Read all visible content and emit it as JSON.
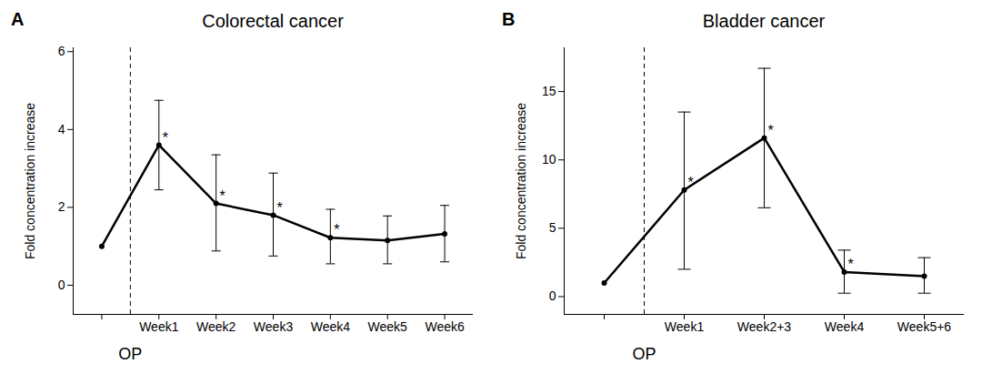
{
  "chart_data": [
    {
      "type": "line",
      "panel": "A",
      "title": "Colorectal cancer",
      "y_label": "Fold concentration increase",
      "categories": [
        null,
        "Week1",
        "Week2",
        "Week3",
        "Week4",
        "Week5",
        "Week6"
      ],
      "values": [
        1.0,
        3.6,
        2.1,
        1.8,
        1.22,
        1.15,
        1.32
      ],
      "error_bars": {
        "lower": [
          null,
          2.45,
          0.88,
          0.75,
          0.55,
          0.55,
          0.6
        ],
        "upper": [
          null,
          4.75,
          3.35,
          2.88,
          1.95,
          1.78,
          2.05
        ]
      },
      "significance": [
        null,
        "*",
        "*",
        "*",
        "*",
        null,
        null
      ],
      "annotations": [
        {
          "text": "OP",
          "position": 0.5,
          "line_style": "dashed"
        }
      ],
      "color": "#000000",
      "marker": "circle",
      "line_style": "solid",
      "ylim": [
        -0.75,
        6.1
      ],
      "yticks": [
        0,
        2,
        4,
        6
      ],
      "grid": false
    },
    {
      "type": "line",
      "panel": "B",
      "title": "Bladder cancer",
      "y_label": "Fold concentration increase",
      "categories": [
        null,
        "Week1",
        "Week2+3",
        "Week4",
        "Week5+6"
      ],
      "values": [
        1.0,
        7.8,
        11.6,
        1.8,
        1.5
      ],
      "error_bars": {
        "lower": [
          null,
          2.0,
          6.5,
          0.25,
          0.25
        ],
        "upper": [
          null,
          13.5,
          16.7,
          3.4,
          2.85
        ]
      },
      "significance": [
        null,
        "*",
        "*",
        "*",
        null
      ],
      "annotations": [
        {
          "text": "OP",
          "position": 0.5,
          "line_style": "dashed"
        }
      ],
      "color": "#000000",
      "marker": "circle",
      "line_style": "solid",
      "ylim": [
        -1.3,
        18.2
      ],
      "yticks": [
        0,
        5,
        10,
        15
      ],
      "grid": false
    }
  ]
}
